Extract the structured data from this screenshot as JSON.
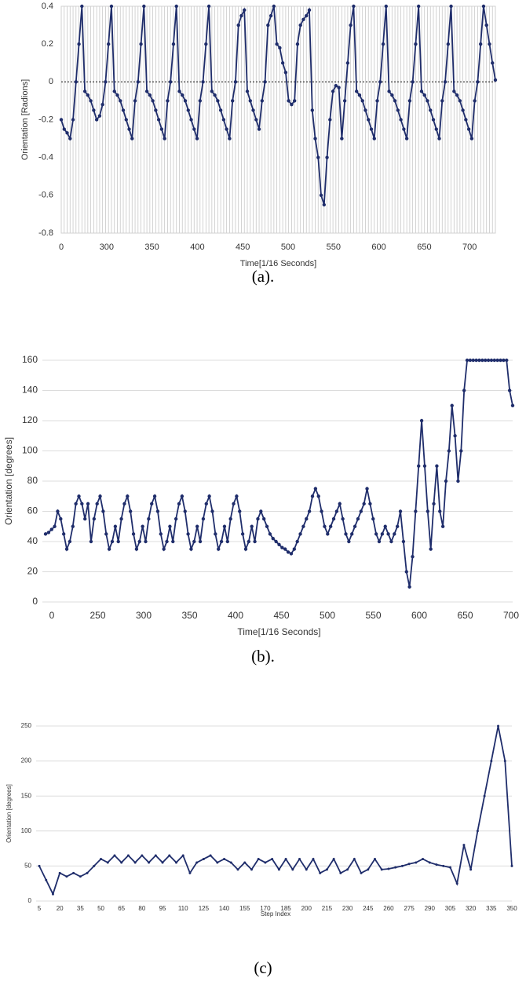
{
  "chart_data": [
    {
      "type": "line",
      "caption": "(a).",
      "xlabel": "Time[1/16 Seconds]",
      "ylabel": "Orientation [Radions]",
      "xticks": [
        0,
        300,
        350,
        400,
        450,
        500,
        550,
        600,
        650,
        700
      ],
      "ylim": [
        -0.8,
        0.4
      ],
      "yticks": [
        -0.8,
        -0.6,
        -0.4,
        -0.2,
        0,
        0.2,
        0.4
      ],
      "grid": "x",
      "zero_line": true,
      "color": "#1f2d6b",
      "values": [
        -0.2,
        -0.25,
        -0.27,
        -0.3,
        -0.2,
        0,
        0.2,
        0.4,
        -0.05,
        -0.07,
        -0.1,
        -0.15,
        -0.2,
        -0.18,
        -0.12,
        0,
        0.2,
        0.4,
        -0.05,
        -0.07,
        -0.1,
        -0.15,
        -0.2,
        -0.25,
        -0.3,
        -0.1,
        0,
        0.2,
        0.4,
        -0.05,
        -0.07,
        -0.1,
        -0.15,
        -0.2,
        -0.25,
        -0.3,
        -0.1,
        0,
        0.2,
        0.4,
        -0.05,
        -0.07,
        -0.1,
        -0.15,
        -0.2,
        -0.25,
        -0.3,
        -0.1,
        0,
        0.2,
        0.4,
        -0.05,
        -0.07,
        -0.1,
        -0.15,
        -0.2,
        -0.25,
        -0.3,
        -0.1,
        0,
        0.3,
        0.35,
        0.38,
        -0.05,
        -0.1,
        -0.15,
        -0.2,
        -0.25,
        -0.1,
        0,
        0.3,
        0.35,
        0.4,
        0.2,
        0.18,
        0.1,
        0.05,
        -0.1,
        -0.12,
        -0.1,
        0.2,
        0.3,
        0.33,
        0.35,
        0.38,
        -0.15,
        -0.3,
        -0.4,
        -0.6,
        -0.65,
        -0.4,
        -0.2,
        -0.05,
        -0.02,
        -0.03,
        -0.3,
        -0.1,
        0.1,
        0.3,
        0.4,
        -0.05,
        -0.07,
        -0.1,
        -0.15,
        -0.2,
        -0.25,
        -0.3,
        -0.1,
        0,
        0.2,
        0.4,
        -0.05,
        -0.07,
        -0.1,
        -0.15,
        -0.2,
        -0.25,
        -0.3,
        -0.1,
        0,
        0.2,
        0.4,
        -0.05,
        -0.07,
        -0.1,
        -0.15,
        -0.2,
        -0.25,
        -0.3,
        -0.1,
        0,
        0.2,
        0.4,
        -0.05,
        -0.07,
        -0.1,
        -0.15,
        -0.2,
        -0.25,
        -0.3,
        -0.1,
        0,
        0.2,
        0.4,
        0.3,
        0.2,
        0.1,
        0.01
      ]
    },
    {
      "type": "line",
      "caption": "(b).",
      "xlabel": "Time[1/16 Seconds]",
      "ylabel": "Orientation [degrees]",
      "xticks": [
        0,
        250,
        300,
        350,
        400,
        450,
        500,
        550,
        600,
        650,
        700
      ],
      "ylim": [
        0,
        160
      ],
      "yticks": [
        0,
        20,
        40,
        60,
        80,
        100,
        120,
        140,
        160
      ],
      "grid": "y",
      "color": "#1f2d6b",
      "values": [
        45,
        46,
        48,
        50,
        60,
        55,
        45,
        35,
        40,
        50,
        65,
        70,
        65,
        55,
        65,
        40,
        55,
        65,
        70,
        60,
        45,
        35,
        40,
        50,
        40,
        55,
        65,
        70,
        60,
        45,
        35,
        40,
        50,
        40,
        55,
        65,
        70,
        60,
        45,
        35,
        40,
        50,
        40,
        55,
        65,
        70,
        60,
        45,
        35,
        40,
        50,
        40,
        55,
        65,
        70,
        60,
        45,
        35,
        40,
        50,
        40,
        55,
        65,
        70,
        60,
        45,
        35,
        40,
        50,
        40,
        55,
        60,
        55,
        50,
        45,
        42,
        40,
        38,
        36,
        35,
        33,
        32,
        35,
        40,
        45,
        50,
        55,
        60,
        70,
        75,
        70,
        60,
        50,
        45,
        50,
        55,
        60,
        65,
        55,
        45,
        40,
        45,
        50,
        55,
        60,
        65,
        75,
        65,
        55,
        45,
        40,
        45,
        50,
        45,
        40,
        45,
        50,
        60,
        40,
        20,
        10,
        30,
        60,
        90,
        120,
        90,
        60,
        35,
        65,
        90,
        60,
        50,
        80,
        100,
        130,
        110,
        80,
        100,
        140,
        160,
        160,
        160,
        160,
        160,
        160,
        160,
        160,
        160,
        160,
        160,
        160,
        160,
        160,
        140,
        130
      ]
    },
    {
      "type": "line",
      "caption": "(c)",
      "xlabel": "Step Index",
      "ylabel": "Orientation [degrees]",
      "xlim": [
        5,
        350
      ],
      "xticks": [
        5,
        20,
        35,
        50,
        65,
        80,
        95,
        110,
        125,
        140,
        155,
        170,
        185,
        200,
        215,
        230,
        245,
        260,
        275,
        290,
        305,
        320,
        335,
        350
      ],
      "ylim": [
        0,
        250
      ],
      "yticks": [
        0,
        50,
        100,
        150,
        200,
        250
      ],
      "grid": "y",
      "color": "#1f2d6b",
      "x": [
        5,
        10,
        15,
        20,
        25,
        30,
        35,
        40,
        45,
        50,
        55,
        60,
        65,
        70,
        75,
        80,
        85,
        90,
        95,
        100,
        105,
        110,
        115,
        120,
        125,
        130,
        135,
        140,
        145,
        150,
        155,
        160,
        165,
        170,
        175,
        180,
        185,
        190,
        195,
        200,
        205,
        210,
        215,
        220,
        225,
        230,
        235,
        240,
        245,
        250,
        255,
        260,
        265,
        270,
        275,
        280,
        285,
        290,
        295,
        300,
        305,
        310,
        315,
        320,
        325,
        330,
        335,
        340,
        345,
        350
      ],
      "values": [
        50,
        30,
        10,
        40,
        35,
        40,
        35,
        40,
        50,
        60,
        55,
        65,
        55,
        65,
        55,
        65,
        55,
        65,
        55,
        65,
        55,
        65,
        40,
        55,
        60,
        65,
        55,
        60,
        55,
        45,
        55,
        45,
        60,
        55,
        60,
        45,
        60,
        45,
        60,
        45,
        60,
        40,
        45,
        60,
        40,
        45,
        60,
        40,
        45,
        60,
        45,
        46,
        48,
        50,
        53,
        55,
        60,
        55,
        52,
        50,
        48,
        25,
        80,
        45,
        100,
        150,
        200,
        250,
        200,
        50
      ]
    }
  ]
}
